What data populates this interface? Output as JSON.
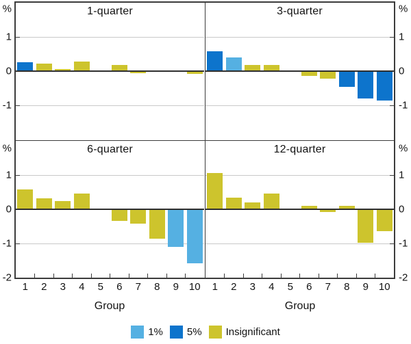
{
  "chart_data": {
    "type": "bar",
    "unit": "%",
    "xlabel": "Group",
    "categories": [
      "1",
      "2",
      "3",
      "4",
      "5",
      "6",
      "7",
      "8",
      "9",
      "10"
    ],
    "ylim": [
      -2,
      2
    ],
    "gridlines_at": [
      1,
      -1
    ],
    "y_axis_labels_top_panels": [
      "%",
      "1",
      "0",
      "-1"
    ],
    "y_axis_labels_bottom_panels": [
      "%",
      "1",
      "0",
      "-1",
      "-2"
    ],
    "legend_position": "bottom-center",
    "legend": [
      {
        "label": "1%",
        "key": "1%",
        "color": "#55B0E2"
      },
      {
        "label": "5%",
        "key": "5%",
        "color": "#0D74CC"
      },
      {
        "label": "Insignificant",
        "key": "insignificant",
        "color": "#CDC42D"
      }
    ],
    "significance_colors": {
      "1%": "#55B0E2",
      "5%": "#0D74CC",
      "insignificant": "#CDC42D"
    },
    "panels": [
      {
        "title": "1-quarter",
        "values": [
          0.27,
          0.23,
          0.06,
          0.29,
          0,
          0.18,
          -0.05,
          -0.02,
          -0.02,
          -0.08
        ],
        "significance": [
          "5%",
          "insignificant",
          "insignificant",
          "insignificant",
          "insignificant",
          "insignificant",
          "insignificant",
          "insignificant",
          "insignificant",
          "insignificant"
        ]
      },
      {
        "title": "3-quarter",
        "values": [
          0.59,
          0.41,
          0.19,
          0.18,
          0,
          -0.13,
          -0.22,
          -0.45,
          -0.8,
          -0.86
        ],
        "significance": [
          "5%",
          "1%",
          "insignificant",
          "insignificant",
          "insignificant",
          "insignificant",
          "insignificant",
          "5%",
          "5%",
          "5%"
        ]
      },
      {
        "title": "6-quarter",
        "values": [
          0.58,
          0.32,
          0.24,
          0.46,
          0,
          -0.34,
          -0.42,
          -0.85,
          -1.1,
          -1.58
        ],
        "significance": [
          "insignificant",
          "insignificant",
          "insignificant",
          "insignificant",
          "insignificant",
          "insignificant",
          "insignificant",
          "insignificant",
          "1%",
          "1%"
        ]
      },
      {
        "title": "12-quarter",
        "values": [
          1.07,
          0.35,
          0.21,
          0.46,
          0,
          0.11,
          -0.08,
          0.1,
          -0.97,
          -0.64
        ],
        "significance": [
          "insignificant",
          "insignificant",
          "insignificant",
          "insignificant",
          "insignificant",
          "insignificant",
          "insignificant",
          "insignificant",
          "insignificant",
          "insignificant"
        ]
      }
    ]
  },
  "colors": {
    "border": "#3b3b3b",
    "gridline": "#c9c9c9",
    "zero_line": "#2e2e2e",
    "background": "#ffffff",
    "text": "#121212"
  }
}
